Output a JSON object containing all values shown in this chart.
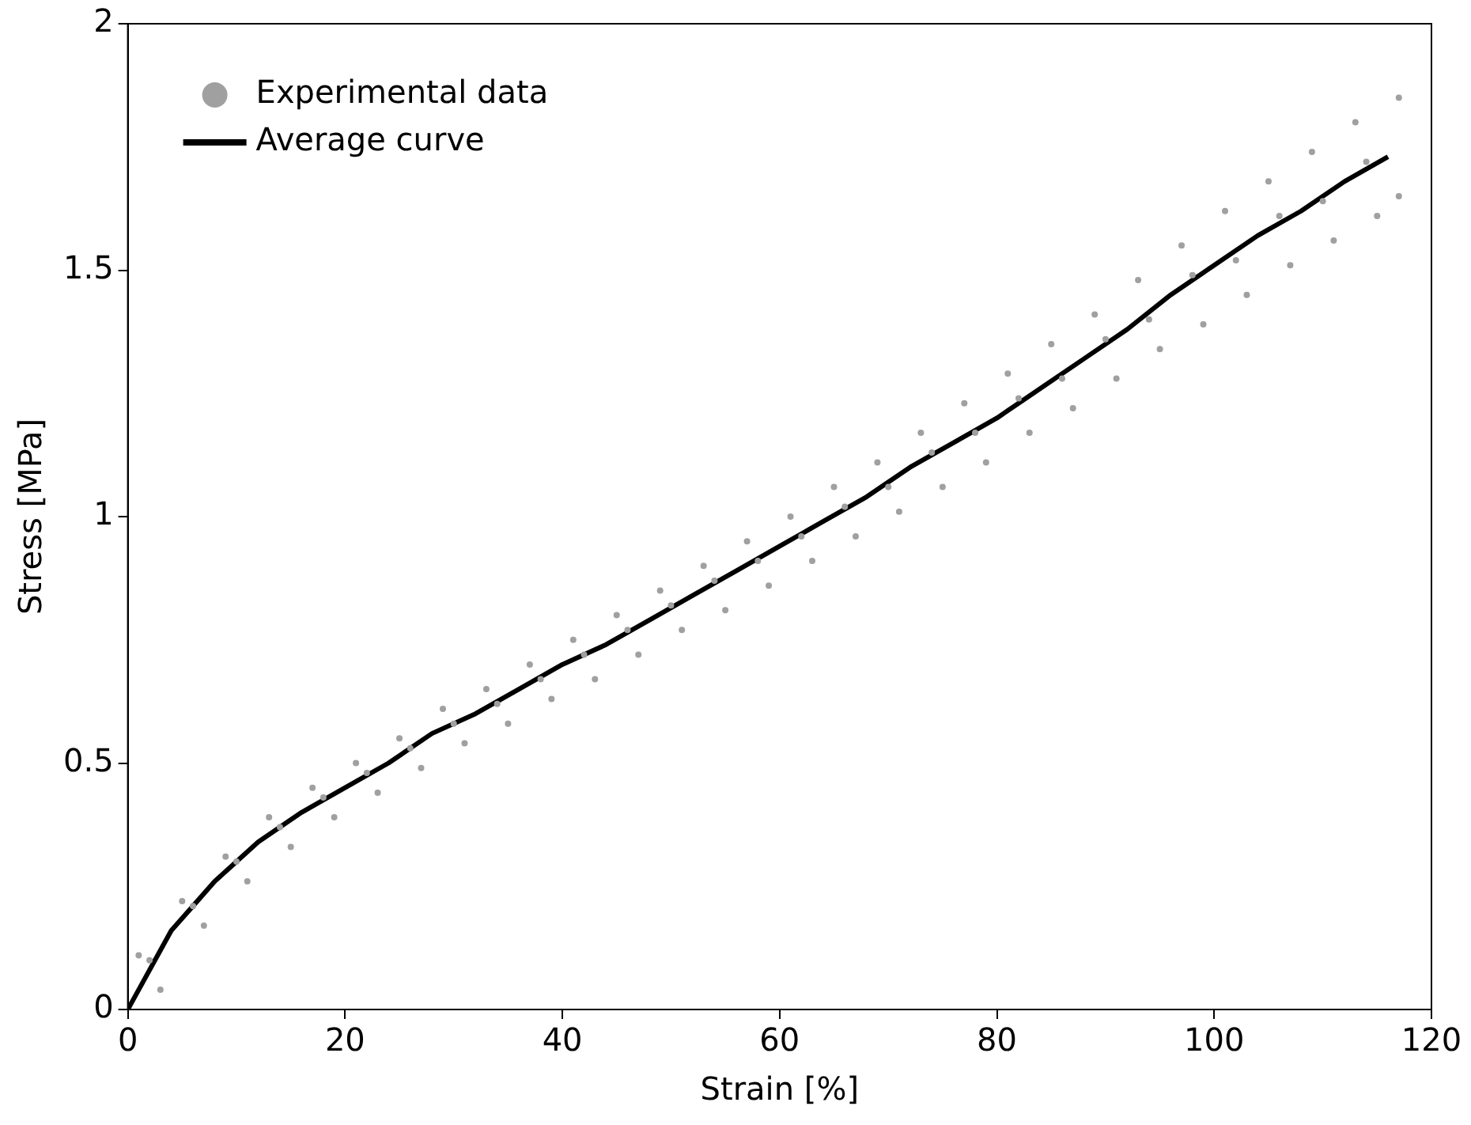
{
  "chart_data": {
    "type": "scatter",
    "xlabel": "Strain [%]",
    "ylabel": "Stress [MPa]",
    "xlim": [
      0,
      120
    ],
    "xticks": [
      0,
      20,
      40,
      60,
      80,
      100,
      120
    ],
    "ylim": [
      0,
      2
    ],
    "yticks": [
      0,
      0.5,
      1,
      1.5,
      2
    ],
    "grid": false,
    "legend": "top left",
    "series": [
      {
        "name": "Experimental data",
        "marker": "circle",
        "color": "#a0a0a0",
        "x": [
          1,
          5,
          9,
          13,
          17,
          21,
          25,
          29,
          33,
          37,
          41,
          45,
          49,
          53,
          57,
          61,
          65,
          69,
          73,
          77,
          81,
          85,
          89,
          93,
          97,
          101,
          105,
          109,
          113,
          117,
          3,
          7,
          11,
          15,
          19,
          23,
          27,
          31,
          35,
          39,
          43,
          47,
          51,
          55,
          59,
          63,
          67,
          71,
          75,
          79,
          83,
          87,
          91,
          95,
          99,
          103,
          107,
          111,
          115,
          117,
          2,
          6,
          10,
          14,
          18,
          22,
          26,
          30,
          34,
          38,
          42,
          46,
          50,
          54,
          58,
          62,
          66,
          70,
          74,
          78,
          82,
          86,
          90,
          94,
          98,
          102,
          106,
          110,
          114
        ],
        "values": [
          0.11,
          0.22,
          0.31,
          0.39,
          0.45,
          0.5,
          0.55,
          0.61,
          0.65,
          0.7,
          0.75,
          0.8,
          0.85,
          0.9,
          0.95,
          1.0,
          1.06,
          1.11,
          1.17,
          1.23,
          1.29,
          1.35,
          1.41,
          1.48,
          1.55,
          1.62,
          1.68,
          1.74,
          1.8,
          1.85,
          0.04,
          0.17,
          0.26,
          0.33,
          0.39,
          0.44,
          0.49,
          0.54,
          0.58,
          0.63,
          0.67,
          0.72,
          0.77,
          0.81,
          0.86,
          0.91,
          0.96,
          1.01,
          1.06,
          1.11,
          1.17,
          1.22,
          1.28,
          1.34,
          1.39,
          1.45,
          1.51,
          1.56,
          1.61,
          1.65,
          0.1,
          0.21,
          0.3,
          0.37,
          0.43,
          0.48,
          0.53,
          0.58,
          0.62,
          0.67,
          0.72,
          0.77,
          0.82,
          0.87,
          0.91,
          0.96,
          1.02,
          1.06,
          1.13,
          1.17,
          1.24,
          1.28,
          1.36,
          1.4,
          1.49,
          1.52,
          1.61,
          1.64,
          1.72
        ]
      },
      {
        "name": "Average curve",
        "type": "line",
        "marker": "none",
        "line_style": "solid",
        "color": "#000000",
        "x": [
          0,
          4,
          8,
          12,
          16,
          20,
          24,
          28,
          32,
          36,
          40,
          44,
          48,
          52,
          56,
          60,
          64,
          68,
          72,
          76,
          80,
          84,
          88,
          92,
          96,
          100,
          104,
          108,
          112,
          116
        ],
        "values": [
          0,
          0.16,
          0.26,
          0.34,
          0.4,
          0.45,
          0.5,
          0.56,
          0.6,
          0.65,
          0.7,
          0.74,
          0.79,
          0.84,
          0.89,
          0.94,
          0.99,
          1.04,
          1.1,
          1.15,
          1.2,
          1.26,
          1.32,
          1.38,
          1.45,
          1.51,
          1.57,
          1.62,
          1.68,
          1.73
        ]
      }
    ]
  }
}
